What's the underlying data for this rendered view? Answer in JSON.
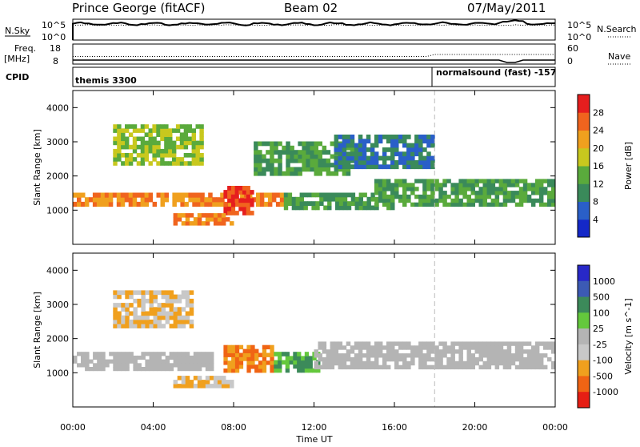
{
  "header": {
    "station": "Prince George (fitACF)",
    "beam": "Beam 02",
    "date": "07/May/2011"
  },
  "left_labels": {
    "nsky": "N.Sky",
    "nsky_top": "10^5",
    "nsky_bot": "10^0",
    "freq": "Freq.",
    "freq_unit": "[MHz]",
    "freq_top": "18",
    "freq_bot": "8",
    "cpid": "CPID"
  },
  "right_labels": {
    "nsearch": "N.Search",
    "nsearch_top": "10^5",
    "nsearch_bot": "10^0",
    "nave": "Nave",
    "nave_top": "60",
    "nave_bot": "0"
  },
  "cpid_labels": {
    "first": "themis 3300",
    "second": "normalsound (fast) -157"
  },
  "colors": {
    "power": [
      "#1428c8",
      "#2a5fc8",
      "#3a8a5a",
      "#5aaa3c",
      "#c8c81e",
      "#f0a01e",
      "#f0641e",
      "#e61e1e"
    ],
    "velocity": [
      "#e61e14",
      "#f06414",
      "#f0a01e",
      "#c8c8c8",
      "#b4b4b4",
      "#64c83c",
      "#3c8a5a",
      "#3c5ab4",
      "#2828c8"
    ]
  },
  "chart_data": [
    {
      "type": "heatmap",
      "title": "",
      "xlabel": "Time UT",
      "ylabel": "Slant Range [km]",
      "xlim": [
        0,
        24
      ],
      "ylim": [
        0,
        4500
      ],
      "x_ticks": [
        "00:00",
        "04:00",
        "08:00",
        "12:00",
        "16:00",
        "20:00",
        "00:00"
      ],
      "y_ticks": [
        1000,
        2000,
        3000,
        4000
      ],
      "colorbar_label": "Power [dB]",
      "colorbar_ticks": [
        4,
        8,
        12,
        16,
        20,
        24,
        28
      ],
      "bands": [
        {
          "t": [
            0,
            10.5
          ],
          "r": [
            1100,
            1500
          ],
          "level": 24
        },
        {
          "t": [
            10.5,
            16
          ],
          "r": [
            1000,
            1500
          ],
          "level": 12
        },
        {
          "t": [
            15,
            24
          ],
          "r": [
            1100,
            1900
          ],
          "level": 12
        },
        {
          "t": [
            2,
            6.5
          ],
          "r": [
            2300,
            3500
          ],
          "level": 16
        },
        {
          "t": [
            7.5,
            9
          ],
          "r": [
            850,
            1700
          ],
          "level": 28
        },
        {
          "t": [
            5,
            8
          ],
          "r": [
            550,
            900
          ],
          "level": 24
        },
        {
          "t": [
            9,
            14
          ],
          "r": [
            2000,
            3000
          ],
          "level": 12
        },
        {
          "t": [
            13,
            18
          ],
          "r": [
            2200,
            3200
          ],
          "level": 8
        }
      ]
    },
    {
      "type": "heatmap",
      "title": "",
      "xlabel": "Time UT",
      "ylabel": "Slant Range [km]",
      "xlim": [
        0,
        24
      ],
      "ylim": [
        0,
        4500
      ],
      "x_ticks": [
        "00:00",
        "04:00",
        "08:00",
        "12:00",
        "16:00",
        "20:00",
        "00:00"
      ],
      "y_ticks": [
        1000,
        2000,
        3000,
        4000
      ],
      "colorbar_label": "Velocity [m s^-1]",
      "colorbar_ticks": [
        1000,
        500,
        100,
        25,
        -25,
        -100,
        -500,
        -1000
      ],
      "bands": [
        {
          "t": [
            0,
            7
          ],
          "r": [
            1050,
            1600
          ],
          "value": 0
        },
        {
          "t": [
            7.5,
            10
          ],
          "r": [
            1000,
            1800
          ],
          "value": -500
        },
        {
          "t": [
            10,
            12.3
          ],
          "r": [
            1000,
            1600
          ],
          "value": 100
        },
        {
          "t": [
            12,
            24
          ],
          "r": [
            1100,
            1900
          ],
          "value": 0
        },
        {
          "t": [
            5,
            8
          ],
          "r": [
            550,
            900
          ],
          "value": -100
        },
        {
          "t": [
            2,
            6
          ],
          "r": [
            2300,
            3400
          ],
          "value": -100
        }
      ]
    }
  ],
  "status_lines": {
    "nsky_level": "10^5",
    "freq_level": "11"
  }
}
